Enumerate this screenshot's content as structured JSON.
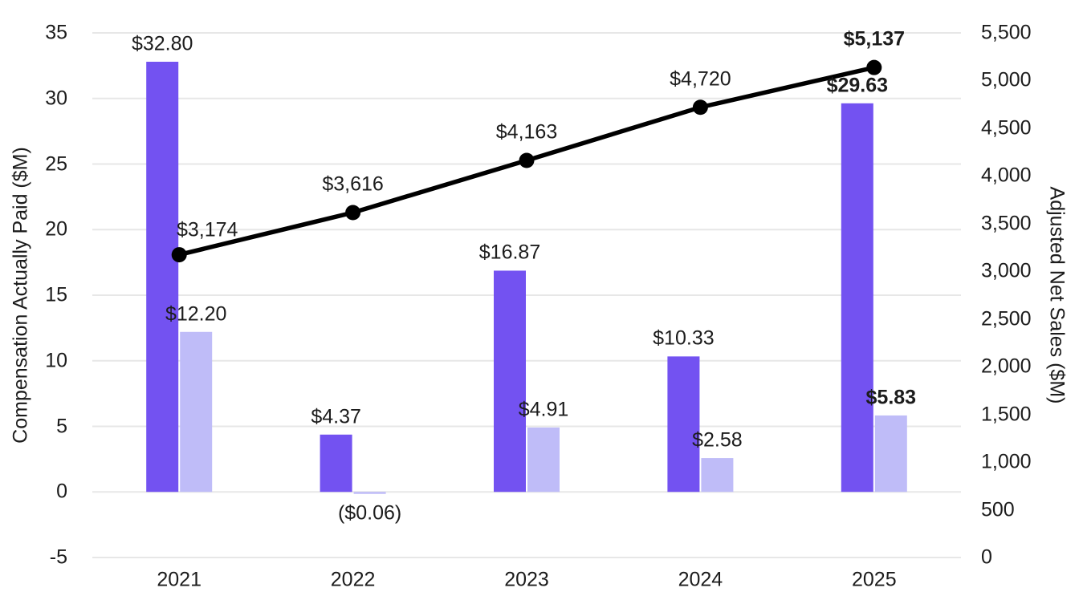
{
  "chart_data": {
    "type": "combo-bar-line",
    "categories": [
      "2021",
      "2022",
      "2023",
      "2024",
      "2025"
    ],
    "series": [
      {
        "id": "bar-dark",
        "type": "bar",
        "axis": "left",
        "color": "#7352f1",
        "values": [
          32.8,
          4.37,
          16.87,
          10.33,
          29.63
        ],
        "labels": [
          "$32.80",
          "$4.37",
          "$16.87",
          "$10.33",
          "$29.63"
        ]
      },
      {
        "id": "bar-light",
        "type": "bar",
        "axis": "left",
        "color": "#bfbcf8",
        "values": [
          12.2,
          -0.06,
          4.91,
          2.58,
          5.83
        ],
        "labels": [
          "$12.20",
          "($0.06)",
          "$4.91",
          "$2.58",
          "$5.83"
        ]
      },
      {
        "id": "line",
        "type": "line",
        "axis": "right",
        "color": "#000000",
        "values": [
          3174,
          3616,
          4163,
          4720,
          5137
        ],
        "labels": [
          "$3,174",
          "$3,616",
          "$4,163",
          "$4,720",
          "$5,137"
        ]
      }
    ],
    "left_axis": {
      "title": "Compensation Actually Paid ($M)",
      "min": -5,
      "max": 35,
      "tick_step": 5,
      "ticks": [
        "35",
        "30",
        "25",
        "20",
        "15",
        "10",
        "5",
        "0",
        "-5"
      ]
    },
    "right_axis": {
      "title": "Adjusted Net Sales ($M)",
      "min": 0,
      "max": 5500,
      "tick_step": 500,
      "ticks": [
        "5,500",
        "5,000",
        "4,500",
        "4,000",
        "3,500",
        "3,000",
        "2,500",
        "2,000",
        "1,500",
        "1,000",
        "500",
        "0"
      ]
    },
    "emphasized_category": "2025",
    "grid": true,
    "gridline_color": "#e7e7e7",
    "legend": "none",
    "title": ""
  }
}
